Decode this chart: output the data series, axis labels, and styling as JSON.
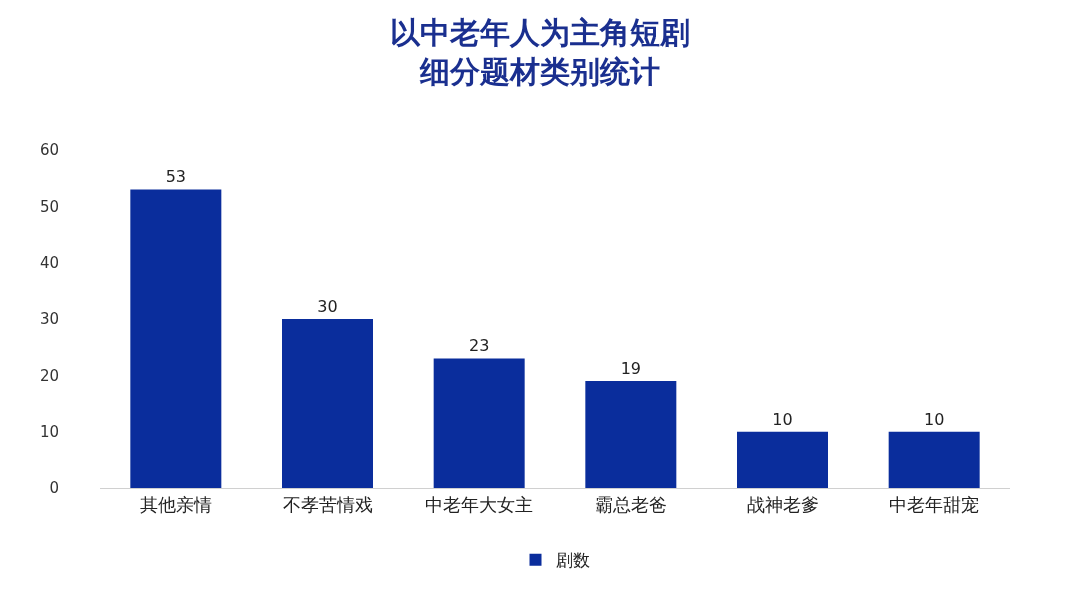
{
  "chart_data": {
    "type": "bar",
    "title": "以中老年人为主角短剧细分题材类别统计",
    "categories": [
      "其他亲情",
      "不孝苦情戏",
      "中老年大女主",
      "霸总老爸",
      "战神老爹",
      "中老年甜宠"
    ],
    "series": [
      {
        "name": "剧数",
        "color": "#0a2d9c",
        "values": [
          53,
          30,
          23,
          19,
          10,
          10
        ]
      }
    ],
    "ylim": [
      0,
      60
    ],
    "yticks": [
      0,
      10,
      20,
      30,
      40,
      50,
      60
    ],
    "grid": false,
    "legend": "bottom",
    "data_labels": true
  }
}
